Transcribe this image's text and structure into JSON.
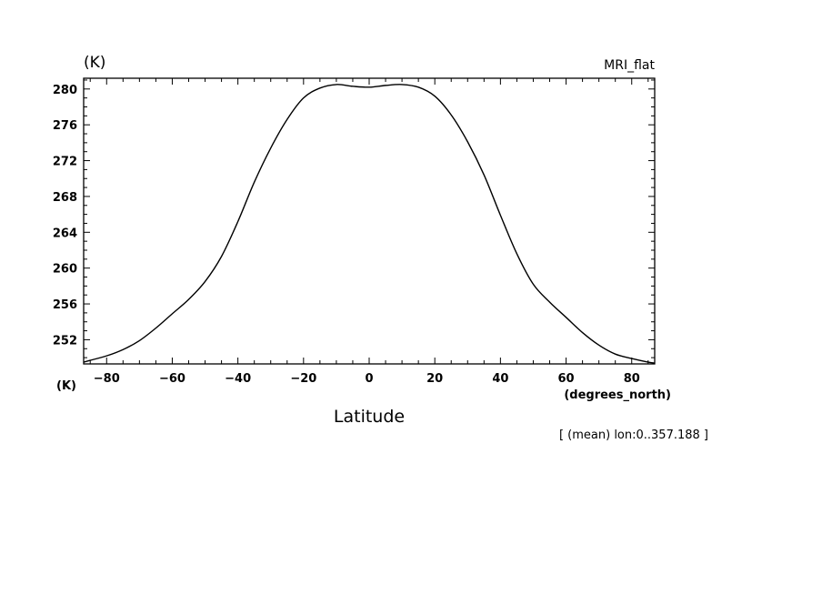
{
  "chart_data": {
    "type": "line",
    "title": "MRI_flat",
    "ylabel": "(K)",
    "ylabel_bottom": "(K)",
    "xlabel": "Latitude",
    "xunits": "(degrees_north)",
    "subtitle": "[ (mean) lon:0..357.188 ]",
    "xlim": [
      -87,
      87
    ],
    "ylim": [
      249.3,
      281.2
    ],
    "xticks": [
      -80,
      -60,
      -40,
      -20,
      0,
      20,
      40,
      60,
      80
    ],
    "xtick_labels": [
      "-80",
      "-60",
      "-40",
      "-20",
      "0",
      "20",
      "40",
      "60",
      "80"
    ],
    "yticks": [
      252,
      256,
      260,
      264,
      268,
      272,
      276,
      280
    ],
    "ytick_labels": [
      "252",
      "256",
      "260",
      "264",
      "268",
      "272",
      "276",
      "280"
    ],
    "grid": false,
    "series": [
      {
        "x": [
          -87,
          -85,
          -80,
          -75,
          -70,
          -65,
          -60,
          -55,
          -50,
          -45,
          -40,
          -35,
          -30,
          -25,
          -20,
          -15,
          -10,
          -5,
          0,
          5,
          10,
          15,
          20,
          25,
          30,
          35,
          40,
          45,
          50,
          55,
          60,
          65,
          70,
          75,
          80,
          85,
          87
        ],
        "values": [
          249.5,
          249.7,
          250.2,
          250.9,
          251.9,
          253.3,
          254.9,
          256.5,
          258.5,
          261.3,
          265.2,
          269.6,
          273.4,
          276.6,
          279.0,
          280.1,
          280.5,
          280.3,
          280.2,
          280.4,
          280.5,
          280.2,
          279.2,
          277.1,
          274.1,
          270.4,
          265.9,
          261.6,
          258.2,
          256.2,
          254.5,
          252.8,
          251.4,
          250.4,
          249.9,
          249.5,
          249.4
        ]
      }
    ]
  }
}
